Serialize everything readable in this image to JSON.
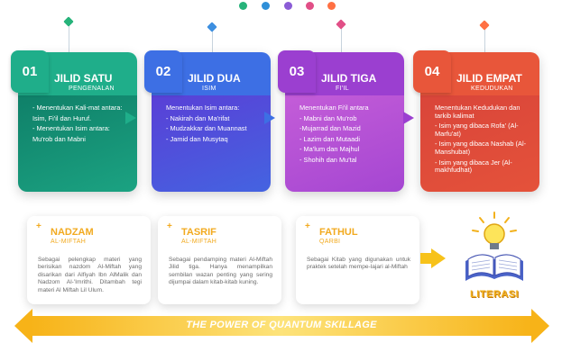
{
  "top_dots": [
    "#26b37a",
    "#2f8fd8",
    "#8b5cd6",
    "#e14f87",
    "#ff7043"
  ],
  "steps": [
    {
      "number": "01",
      "title": "JILID SATU",
      "subtitle": "PENGENALAN",
      "color": "#1fae8a",
      "color_dark": "#0f7f68",
      "lines": [
        "- Menentukan Kali-mat antara:",
        "Isim, Fi'il dan Huruf.",
        "- Menentukan Isim antara:",
        "Mu'rob dan Mabni"
      ]
    },
    {
      "number": "02",
      "title": "JILID DUA",
      "subtitle": "ISIM",
      "color": "#3d6fe4",
      "color_dark": "#5a3fd6",
      "lines": [
        "Menentukan Isim antara:",
        "- Nakirah dan Ma'rifat",
        "- Mudzakkar dan Muannast",
        "- Jamid dan Musytaq"
      ]
    },
    {
      "number": "03",
      "title": "JILID TIGA",
      "subtitle": "FI'IL",
      "color": "#9b3fd0",
      "color_dark": "#c45dd8",
      "lines": [
        "Menentukan Fi'il antara",
        "- Mabni dan Mu'rob",
        "-Mujarrad dan Mazid",
        "- Lazim dan Mutaadi",
        "- Ma'lum dan Majhul",
        "- Shohih dan Mu'tal"
      ]
    },
    {
      "number": "04",
      "title": "JILID EMPAT",
      "subtitle": "KEDUDUKAN",
      "color": "#e8563a",
      "color_dark": "#d9453a",
      "lines": [
        "Menentukan Kedudukan dan tarkib kalimat",
        "- Isim yang dibaca Rofa' (Al-Marfu'at)",
        "- Isim yang dibaca Nashab (Al-Manshubat)",
        "- Isim yang dibaca Jer (Al-makhfudhat)"
      ]
    }
  ],
  "lower": [
    {
      "title": "NADZAM",
      "subtitle": "AL-MIFTAH",
      "text": "Sebagai pelengkap materi yang berisikan nazdom Al-Miftah yang disarikan dari Alfiyah Ibn AlMalik dan Nadzom Al-'Imrithi. Ditambah tegi materi Al Miftah Lil Ulum."
    },
    {
      "title": "TASRIF",
      "subtitle": "AL-MIFTAH",
      "text": "Sebagai pendamping materi Al-Miftah Jilid tiga. Hanya menampilkan sembilan wazan penting yang sering dijumpai dalam kitab-kitab kuning."
    },
    {
      "title": "FATHUL",
      "subtitle": "QARBI",
      "text": "Sebagai Kitab yang digunakan untuk praktek setelah mempe-lajari al-Miftah"
    }
  ],
  "literasi": "LITERASI",
  "bottom_bar": "THE POWER OF QUANTUM SKILLAGE",
  "icons": {
    "pin": "diamond-pin-icon",
    "book": "open-book-lightbulb-icon",
    "plus": "plus-icon"
  }
}
